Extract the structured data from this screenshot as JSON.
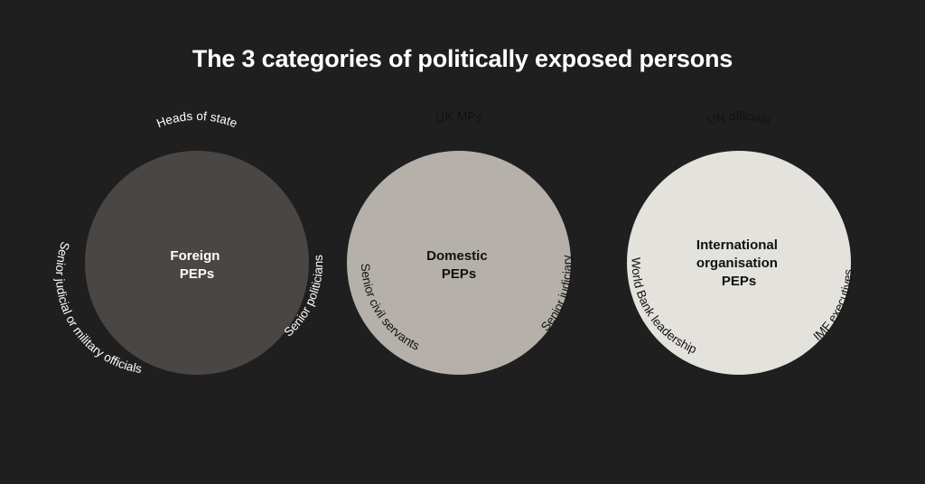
{
  "title": "The 3 categories of politically exposed persons",
  "categories": [
    {
      "center_lines": [
        "Foreign",
        "PEPs"
      ],
      "fill": "#4a4644",
      "text_color": "#ffffff",
      "examples": [
        "Heads of state",
        "Senior politicians",
        "Senior judicial or military officials"
      ]
    },
    {
      "center_lines": [
        "Domestic",
        "PEPs"
      ],
      "fill": "#b5b1aa",
      "text_color": "#111111",
      "examples": [
        "UK MPs",
        "Senior judiciary",
        "Senior civil servants"
      ]
    },
    {
      "center_lines": [
        "International",
        "organisation",
        "PEPs"
      ],
      "fill": "#e4e2dd",
      "text_color": "#111111",
      "examples": [
        "UN officials",
        "IMF executives",
        "World Bank leadership"
      ]
    }
  ]
}
